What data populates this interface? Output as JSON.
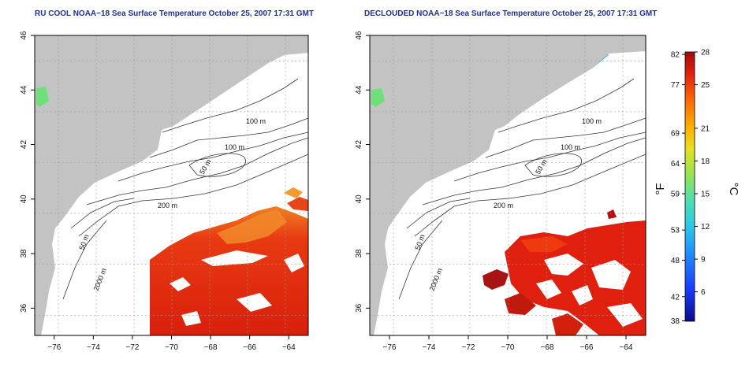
{
  "titles": {
    "left": "RU COOL NOAA−18 Sea Surface Temperature October 25, 2007 17:31 GMT",
    "right": "DECLOUDED NOAA−18 Sea Surface Temperature October 25, 2007 17:31 GMT"
  },
  "axes": {
    "lat_ticks": [
      46,
      44,
      42,
      40,
      38,
      36
    ],
    "lon_ticks": [
      -76,
      -74,
      -72,
      -70,
      -68,
      -66,
      -64
    ],
    "lon_labels": [
      "−76",
      "−74",
      "−72",
      "−70",
      "−68",
      "−66",
      "−64"
    ],
    "lat_range": [
      35,
      46
    ],
    "lon_range": [
      -77,
      -63
    ],
    "grid": true
  },
  "contours": [
    "100 m",
    "100 m",
    "50 m",
    "200 m",
    "50 m",
    "2000 m"
  ],
  "colorbar": {
    "unit_f": "°F",
    "unit_c": "°C",
    "fahrenheit_ticks": [
      82,
      77,
      69,
      64,
      59,
      53,
      48,
      42,
      38
    ],
    "celsius_ticks": [
      28,
      25,
      21,
      18,
      15,
      12,
      9,
      6
    ],
    "range_c": [
      3.3,
      28
    ],
    "colors": [
      "#0a0a8c",
      "#1a3cff",
      "#1e8cff",
      "#29c8e8",
      "#4de0b0",
      "#9ae44a",
      "#e8e020",
      "#ffb000",
      "#ff6a00",
      "#e02010",
      "#a50a0a"
    ]
  },
  "colors": {
    "land": "#c3c3c3",
    "title": "#1e2f9a"
  }
}
